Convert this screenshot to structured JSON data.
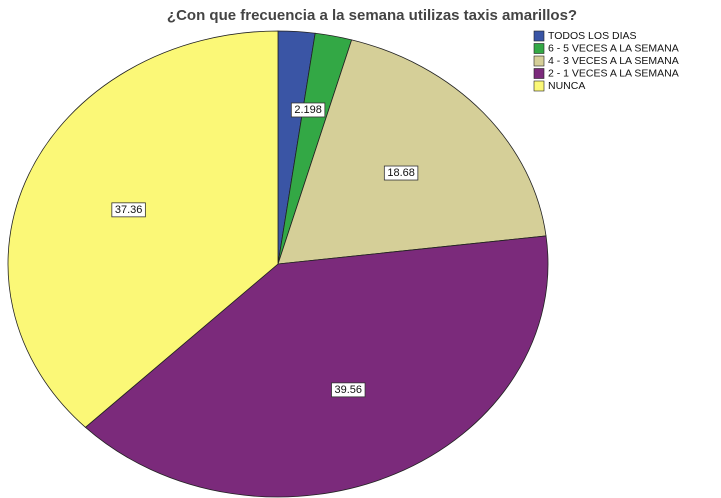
{
  "chart_data": {
    "type": "pie",
    "title": "¿Con que frecuencia a la semana utilizas taxis amarillos?",
    "categories": [
      "TODOS LOS DIAS",
      "6 - 5 VECES A LA SEMANA",
      "4 - 3 VECES A LA SEMANA",
      "2 - 1 VECES A LA SEMANA",
      "NUNCA"
    ],
    "values": [
      2.198,
      2.198,
      18.68,
      39.56,
      37.36
    ],
    "value_labels": [
      null,
      "2.198",
      "18.68",
      "39.56",
      "37.36"
    ],
    "colors": [
      "#3a55a5",
      "#33a845",
      "#d5cf98",
      "#7b2a7b",
      "#fbf877"
    ],
    "legend": "upper right"
  }
}
